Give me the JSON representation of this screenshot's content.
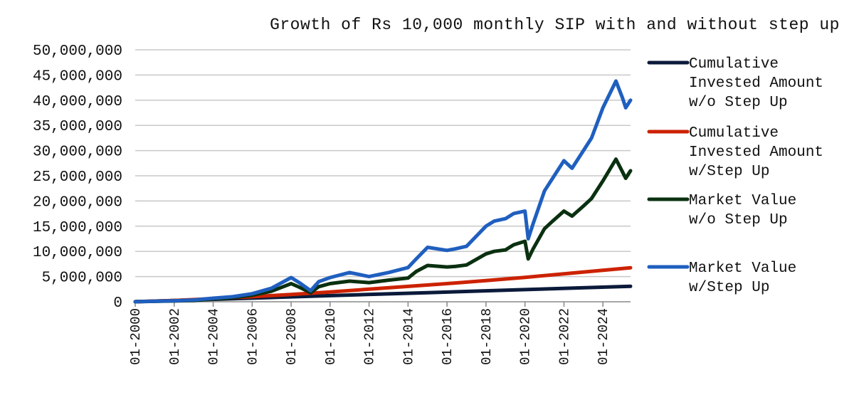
{
  "chart_data": {
    "type": "line",
    "title": "Growth of Rs 10,000 monthly SIP with and without step up",
    "xlabel": "",
    "ylabel": "",
    "xlim": [
      "01-2000",
      "06-2025"
    ],
    "ylim": [
      0,
      50000000
    ],
    "y_ticks": [
      {
        "value": 0,
        "label": "0"
      },
      {
        "value": 5000000,
        "label": "5,000,000"
      },
      {
        "value": 10000000,
        "label": "10,000,000"
      },
      {
        "value": 15000000,
        "label": "15,000,000"
      },
      {
        "value": 20000000,
        "label": "20,000,000"
      },
      {
        "value": 25000000,
        "label": "25,000,000"
      },
      {
        "value": 30000000,
        "label": "30,000,000"
      },
      {
        "value": 35000000,
        "label": "35,000,000"
      },
      {
        "value": 40000000,
        "label": "40,000,000"
      },
      {
        "value": 45000000,
        "label": "45,000,000"
      },
      {
        "value": 50000000,
        "label": "50,000,000"
      }
    ],
    "x_ticks": [
      "01-2000",
      "01-2002",
      "01-2004",
      "01-2006",
      "01-2008",
      "01-2010",
      "01-2012",
      "01-2014",
      "01-2016",
      "01-2018",
      "01-2020",
      "01-2022",
      "01-2024"
    ],
    "grid": {
      "horizontal": true,
      "vertical": false
    },
    "legend_position": "right",
    "series": [
      {
        "name": "Cumulative Invested Amount w/o Step Up",
        "color": "#0b1a3a",
        "points": [
          [
            "01-2000",
            10000
          ],
          [
            "01-2005",
            610000
          ],
          [
            "01-2010",
            1210000
          ],
          [
            "01-2015",
            1810000
          ],
          [
            "01-2020",
            2410000
          ],
          [
            "06-2025",
            3070000
          ]
        ]
      },
      {
        "name": "Cumulative Invested Amount w/Step Up",
        "color": "#cc2200",
        "points": [
          [
            "01-2000",
            10000
          ],
          [
            "01-2002",
            260000
          ],
          [
            "01-2004",
            620000
          ],
          [
            "01-2006",
            1000000
          ],
          [
            "01-2008",
            1450000
          ],
          [
            "01-2010",
            1950000
          ],
          [
            "01-2012",
            2500000
          ],
          [
            "01-2014",
            3050000
          ],
          [
            "01-2016",
            3600000
          ],
          [
            "01-2018",
            4200000
          ],
          [
            "01-2020",
            4850000
          ],
          [
            "01-2022",
            5550000
          ],
          [
            "01-2024",
            6250000
          ],
          [
            "06-2025",
            6750000
          ]
        ]
      },
      {
        "name": "Market Value w/o Step Up",
        "color": "#0a3010",
        "points": [
          [
            "01-2000",
            10000
          ],
          [
            "01-2002",
            150000
          ],
          [
            "01-2003",
            250000
          ],
          [
            "01-2004",
            550000
          ],
          [
            "01-2005",
            800000
          ],
          [
            "01-2006",
            1300000
          ],
          [
            "01-2007",
            2100000
          ],
          [
            "01-2008",
            3600000
          ],
          [
            "06-2008",
            2900000
          ],
          [
            "01-2009",
            1800000
          ],
          [
            "06-2009",
            3000000
          ],
          [
            "01-2010",
            3600000
          ],
          [
            "01-2011",
            4100000
          ],
          [
            "01-2012",
            3800000
          ],
          [
            "01-2013",
            4300000
          ],
          [
            "01-2014",
            4700000
          ],
          [
            "06-2014",
            6000000
          ],
          [
            "01-2015",
            7200000
          ],
          [
            "01-2016",
            6900000
          ],
          [
            "06-2016",
            7000000
          ],
          [
            "01-2017",
            7300000
          ],
          [
            "01-2018",
            9500000
          ],
          [
            "06-2018",
            10000000
          ],
          [
            "01-2019",
            10300000
          ],
          [
            "06-2019",
            11300000
          ],
          [
            "01-2020",
            12000000
          ],
          [
            "03-2020",
            8500000
          ],
          [
            "06-2020",
            10500000
          ],
          [
            "01-2021",
            14500000
          ],
          [
            "06-2021",
            16000000
          ],
          [
            "01-2022",
            18000000
          ],
          [
            "06-2022",
            17000000
          ],
          [
            "01-2023",
            19000000
          ],
          [
            "06-2023",
            20500000
          ],
          [
            "01-2024",
            24000000
          ],
          [
            "09-2024",
            28300000
          ],
          [
            "01-2025",
            25800000
          ],
          [
            "03-2025",
            24500000
          ],
          [
            "06-2025",
            26000000
          ]
        ]
      },
      {
        "name": "Market Value w/Step Up",
        "color": "#1f5fbf",
        "points": [
          [
            "01-2000",
            10000
          ],
          [
            "01-2002",
            200000
          ],
          [
            "01-2003",
            350000
          ],
          [
            "01-2004",
            700000
          ],
          [
            "01-2005",
            1000000
          ],
          [
            "01-2006",
            1600000
          ],
          [
            "01-2007",
            2700000
          ],
          [
            "01-2008",
            4800000
          ],
          [
            "06-2008",
            3800000
          ],
          [
            "01-2009",
            2200000
          ],
          [
            "06-2009",
            4000000
          ],
          [
            "01-2010",
            4800000
          ],
          [
            "01-2011",
            5800000
          ],
          [
            "01-2012",
            5000000
          ],
          [
            "01-2013",
            5800000
          ],
          [
            "01-2014",
            6800000
          ],
          [
            "06-2014",
            8500000
          ],
          [
            "01-2015",
            10800000
          ],
          [
            "01-2016",
            10200000
          ],
          [
            "06-2016",
            10500000
          ],
          [
            "01-2017",
            11000000
          ],
          [
            "01-2018",
            15000000
          ],
          [
            "06-2018",
            16000000
          ],
          [
            "01-2019",
            16500000
          ],
          [
            "06-2019",
            17500000
          ],
          [
            "01-2020",
            18000000
          ],
          [
            "03-2020",
            12500000
          ],
          [
            "06-2020",
            15500000
          ],
          [
            "01-2021",
            22000000
          ],
          [
            "06-2021",
            24500000
          ],
          [
            "01-2022",
            28000000
          ],
          [
            "06-2022",
            26500000
          ],
          [
            "01-2023",
            30000000
          ],
          [
            "06-2023",
            32500000
          ],
          [
            "01-2024",
            38500000
          ],
          [
            "09-2024",
            43800000
          ],
          [
            "01-2025",
            40500000
          ],
          [
            "03-2025",
            38500000
          ],
          [
            "06-2025",
            40000000
          ]
        ]
      }
    ],
    "legend": [
      {
        "lines": [
          "Cumulative",
          "Invested Amount",
          "w/o Step Up"
        ],
        "color": "#0b1a3a"
      },
      {
        "lines": [
          "Cumulative",
          "Invested Amount",
          "w/Step Up"
        ],
        "color": "#cc2200"
      },
      {
        "lines": [
          "Market Value",
          "w/o Step Up"
        ],
        "color": "#0a3010"
      },
      {
        "lines": [
          "Market Value",
          "w/Step Up"
        ],
        "color": "#1f5fbf"
      }
    ]
  }
}
